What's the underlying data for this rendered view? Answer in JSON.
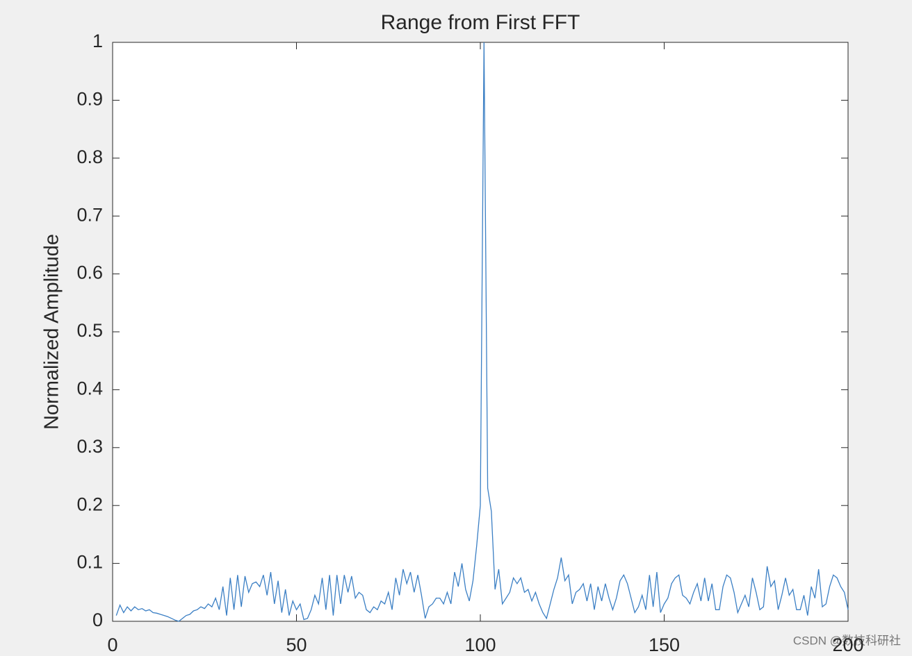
{
  "chart_data": {
    "type": "line",
    "title": "Range from First FFT",
    "y_label": "Normalized Amplitude",
    "x": [
      1,
      2,
      3,
      4,
      5,
      6,
      7,
      8,
      9,
      10,
      11,
      12,
      13,
      14,
      15,
      16,
      17,
      18,
      19,
      20,
      21,
      22,
      23,
      24,
      25,
      26,
      27,
      28,
      29,
      30,
      31,
      32,
      33,
      34,
      35,
      36,
      37,
      38,
      39,
      40,
      41,
      42,
      43,
      44,
      45,
      46,
      47,
      48,
      49,
      50,
      51,
      52,
      53,
      54,
      55,
      56,
      57,
      58,
      59,
      60,
      61,
      62,
      63,
      64,
      65,
      66,
      67,
      68,
      69,
      70,
      71,
      72,
      73,
      74,
      75,
      76,
      77,
      78,
      79,
      80,
      81,
      82,
      83,
      84,
      85,
      86,
      87,
      88,
      89,
      90,
      91,
      92,
      93,
      94,
      95,
      96,
      97,
      98,
      99,
      100,
      101,
      102,
      103,
      104,
      105,
      106,
      107,
      108,
      109,
      110,
      111,
      112,
      113,
      114,
      115,
      116,
      117,
      118,
      119,
      120,
      121,
      122,
      123,
      124,
      125,
      126,
      127,
      128,
      129,
      130,
      131,
      132,
      133,
      134,
      135,
      136,
      137,
      138,
      139,
      140,
      141,
      142,
      143,
      144,
      145,
      146,
      147,
      148,
      149,
      150,
      151,
      152,
      153,
      154,
      155,
      156,
      157,
      158,
      159,
      160,
      161,
      162,
      163,
      164,
      165,
      166,
      167,
      168,
      169,
      170,
      171,
      172,
      173,
      174,
      175,
      176,
      177,
      178,
      179,
      180,
      181,
      182,
      183,
      184,
      185,
      186,
      187,
      188,
      189,
      190,
      191,
      192,
      193,
      194,
      195,
      196,
      197,
      198,
      199,
      200
    ],
    "series": [
      {
        "color": "#3b7fc4",
        "values": [
          0.01,
          0.028,
          0.015,
          0.025,
          0.018,
          0.025,
          0.02,
          0.022,
          0.018,
          0.02,
          0.015,
          0.014,
          0.012,
          0.01,
          0.008,
          0.005,
          0.002,
          0.0,
          0.005,
          0.01,
          0.012,
          0.018,
          0.02,
          0.025,
          0.022,
          0.03,
          0.025,
          0.04,
          0.02,
          0.06,
          0.01,
          0.075,
          0.02,
          0.08,
          0.025,
          0.078,
          0.05,
          0.065,
          0.068,
          0.06,
          0.08,
          0.045,
          0.085,
          0.03,
          0.07,
          0.015,
          0.055,
          0.01,
          0.035,
          0.02,
          0.03,
          0.003,
          0.005,
          0.02,
          0.045,
          0.03,
          0.075,
          0.02,
          0.08,
          0.01,
          0.08,
          0.03,
          0.08,
          0.05,
          0.078,
          0.04,
          0.05,
          0.045,
          0.02,
          0.015,
          0.025,
          0.02,
          0.035,
          0.03,
          0.05,
          0.02,
          0.075,
          0.045,
          0.09,
          0.065,
          0.085,
          0.05,
          0.08,
          0.045,
          0.005,
          0.025,
          0.03,
          0.04,
          0.04,
          0.03,
          0.05,
          0.03,
          0.085,
          0.06,
          0.1,
          0.055,
          0.035,
          0.07,
          0.13,
          0.2,
          1.0,
          0.23,
          0.19,
          0.055,
          0.09,
          0.03,
          0.04,
          0.05,
          0.075,
          0.065,
          0.075,
          0.05,
          0.055,
          0.035,
          0.05,
          0.03,
          0.015,
          0.005,
          0.03,
          0.055,
          0.075,
          0.11,
          0.07,
          0.08,
          0.03,
          0.05,
          0.055,
          0.065,
          0.035,
          0.065,
          0.02,
          0.06,
          0.035,
          0.065,
          0.04,
          0.02,
          0.04,
          0.07,
          0.08,
          0.065,
          0.04,
          0.015,
          0.025,
          0.045,
          0.02,
          0.08,
          0.025,
          0.085,
          0.015,
          0.03,
          0.04,
          0.065,
          0.075,
          0.08,
          0.045,
          0.04,
          0.03,
          0.05,
          0.065,
          0.035,
          0.075,
          0.035,
          0.065,
          0.02,
          0.02,
          0.06,
          0.08,
          0.075,
          0.05,
          0.015,
          0.03,
          0.045,
          0.025,
          0.075,
          0.05,
          0.02,
          0.025,
          0.095,
          0.06,
          0.07,
          0.02,
          0.045,
          0.075,
          0.045,
          0.055,
          0.02,
          0.02,
          0.045,
          0.01,
          0.06,
          0.04,
          0.09,
          0.025,
          0.03,
          0.06,
          0.08,
          0.075,
          0.06,
          0.05,
          0.02
        ]
      }
    ],
    "xlim": [
      0,
      200
    ],
    "xticks": [
      0,
      50,
      100,
      150,
      200
    ],
    "ylim": [
      0,
      1
    ],
    "yticks": [
      0,
      0.1,
      0.2,
      0.3,
      0.4,
      0.5,
      0.6,
      0.7,
      0.8,
      0.9,
      1
    ],
    "watermark": "CSDN @数技科研社"
  }
}
